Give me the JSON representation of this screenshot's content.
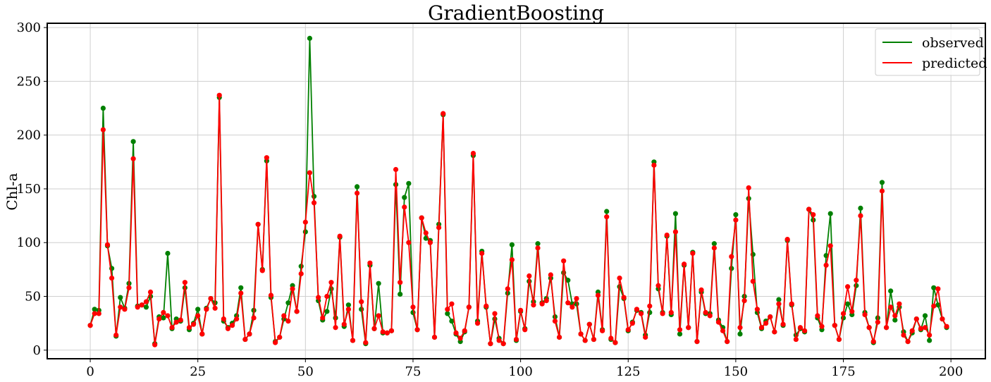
{
  "chart_data": {
    "type": "line",
    "title": "GradientBoosting",
    "xlabel": "",
    "ylabel": "Chl-a",
    "xlim": [
      -10,
      208
    ],
    "ylim": [
      -8,
      304
    ],
    "xticks": [
      0,
      25,
      50,
      75,
      100,
      125,
      150,
      175,
      200
    ],
    "yticks": [
      0,
      50,
      100,
      150,
      200,
      250,
      300
    ],
    "grid": true,
    "legend": "top-right",
    "x": [
      0,
      1,
      2,
      3,
      4,
      5,
      6,
      7,
      8,
      9,
      10,
      11,
      12,
      13,
      14,
      15,
      16,
      17,
      18,
      19,
      20,
      21,
      22,
      23,
      24,
      25,
      26,
      27,
      28,
      29,
      30,
      31,
      32,
      33,
      34,
      35,
      36,
      37,
      38,
      39,
      40,
      41,
      42,
      43,
      44,
      45,
      46,
      47,
      48,
      49,
      50,
      51,
      52,
      53,
      54,
      55,
      56,
      57,
      58,
      59,
      60,
      61,
      62,
      63,
      64,
      65,
      66,
      67,
      68,
      69,
      70,
      71,
      72,
      73,
      74,
      75,
      76,
      77,
      78,
      79,
      80,
      81,
      82,
      83,
      84,
      85,
      86,
      87,
      88,
      89,
      90,
      91,
      92,
      93,
      94,
      95,
      96,
      97,
      98,
      99,
      100,
      101,
      102,
      103,
      104,
      105,
      106,
      107,
      108,
      109,
      110,
      111,
      112,
      113,
      114,
      115,
      116,
      117,
      118,
      119,
      120,
      121,
      122,
      123,
      124,
      125,
      126,
      127,
      128,
      129,
      130,
      131,
      132,
      133,
      134,
      135,
      136,
      137,
      138,
      139,
      140,
      141,
      142,
      143,
      144,
      145,
      146,
      147,
      148,
      149,
      150,
      151,
      152,
      153,
      154,
      155,
      156,
      157,
      158,
      159,
      160,
      161,
      162,
      163,
      164,
      165,
      166,
      167,
      168,
      169,
      170,
      171,
      172,
      173,
      174,
      175,
      176,
      177,
      178,
      179,
      180,
      181,
      182,
      183,
      184,
      185,
      186,
      187,
      188,
      189,
      190,
      191,
      192,
      193,
      194,
      195,
      196,
      197,
      198,
      199
    ],
    "series": [
      {
        "name": "observed",
        "color": "#008000",
        "values": [
          23,
          38,
          37,
          225,
          97,
          76,
          13,
          49,
          39,
          62,
          194,
          41,
          42,
          40,
          50,
          6,
          31,
          30,
          90,
          20,
          29,
          27,
          58,
          19,
          25,
          38,
          15,
          39,
          48,
          44,
          235,
          27,
          21,
          25,
          32,
          58,
          10,
          15,
          37,
          117,
          75,
          176,
          49,
          8,
          12,
          29,
          44,
          60,
          36,
          78,
          110,
          290,
          143,
          46,
          28,
          36,
          57,
          30,
          105,
          22,
          42,
          9,
          152,
          38,
          6,
          79,
          20,
          62,
          16,
          16,
          18,
          154,
          52,
          142,
          155,
          35,
          19,
          123,
          104,
          102,
          12,
          117,
          219,
          34,
          27,
          15,
          8,
          17,
          40,
          181,
          27,
          92,
          40,
          6,
          29,
          11,
          6,
          53,
          98,
          9,
          36,
          20,
          64,
          45,
          99,
          44,
          48,
          67,
          31,
          12,
          72,
          65,
          43,
          43,
          15,
          9,
          24,
          10,
          54,
          19,
          129,
          10,
          7,
          59,
          48,
          18,
          26,
          37,
          35,
          14,
          35,
          175,
          57,
          35,
          106,
          33,
          127,
          15,
          79,
          21,
          91,
          8,
          54,
          34,
          34,
          99,
          28,
          21,
          8,
          76,
          126,
          15,
          50,
          141,
          89,
          35,
          20,
          27,
          31,
          17,
          47,
          23,
          102,
          42,
          14,
          20,
          17,
          131,
          121,
          30,
          19,
          88,
          127,
          23,
          10,
          30,
          43,
          33,
          60,
          132,
          35,
          21,
          7,
          30,
          156,
          21,
          55,
          28,
          40,
          17,
          8,
          16,
          29,
          19,
          32,
          9,
          58,
          42,
          29,
          21
        ]
      },
      {
        "name": "predicted",
        "color": "#ff0000",
        "values": [
          23,
          34,
          34,
          205,
          98,
          67,
          14,
          40,
          38,
          58,
          178,
          40,
          42,
          45,
          54,
          5,
          29,
          35,
          32,
          21,
          26,
          28,
          63,
          21,
          24,
          32,
          15,
          38,
          48,
          39,
          237,
          29,
          20,
          23,
          29,
          53,
          10,
          15,
          30,
          117,
          74,
          179,
          51,
          7,
          12,
          32,
          27,
          57,
          36,
          71,
          119,
          165,
          137,
          49,
          30,
          50,
          63,
          21,
          106,
          24,
          38,
          9,
          146,
          45,
          7,
          81,
          20,
          32,
          17,
          16,
          18,
          168,
          63,
          133,
          100,
          40,
          19,
          123,
          109,
          100,
          12,
          114,
          220,
          38,
          43,
          16,
          11,
          18,
          40,
          183,
          25,
          90,
          41,
          6,
          34,
          9,
          6,
          57,
          84,
          10,
          37,
          19,
          69,
          42,
          95,
          43,
          46,
          70,
          27,
          12,
          83,
          44,
          40,
          48,
          15,
          9,
          24,
          10,
          51,
          18,
          124,
          11,
          7,
          67,
          49,
          19,
          25,
          38,
          34,
          12,
          41,
          172,
          60,
          34,
          107,
          35,
          110,
          19,
          80,
          21,
          90,
          8,
          56,
          35,
          32,
          95,
          26,
          18,
          8,
          87,
          121,
          21,
          46,
          151,
          64,
          38,
          21,
          25,
          31,
          17,
          43,
          24,
          103,
          43,
          10,
          21,
          18,
          131,
          126,
          32,
          22,
          79,
          97,
          23,
          10,
          34,
          59,
          36,
          65,
          125,
          33,
          21,
          8,
          26,
          148,
          21,
          40,
          32,
          43,
          14,
          8,
          18,
          29,
          20,
          21,
          14,
          41,
          57,
          29,
          22
        ]
      }
    ]
  }
}
